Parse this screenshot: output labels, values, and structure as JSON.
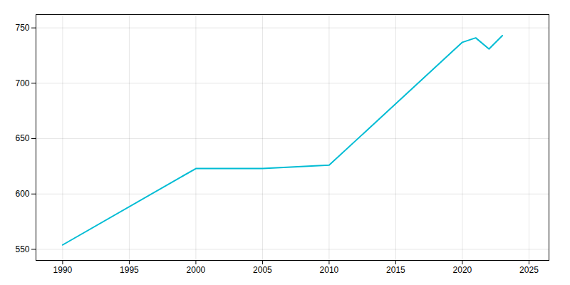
{
  "chart_data": {
    "type": "line",
    "x": [
      1990,
      2000,
      2005,
      2010,
      2020,
      2021,
      2022,
      2023
    ],
    "values": [
      554,
      623,
      623,
      626,
      737,
      741,
      731,
      743
    ],
    "color": "#00bcd4",
    "xlim": [
      1988,
      2026.5
    ],
    "ylim": [
      540,
      762
    ],
    "xticks": [
      1990,
      1995,
      2000,
      2005,
      2010,
      2015,
      2020,
      2025
    ],
    "yticks": [
      550,
      600,
      650,
      700,
      750
    ],
    "grid": true
  }
}
